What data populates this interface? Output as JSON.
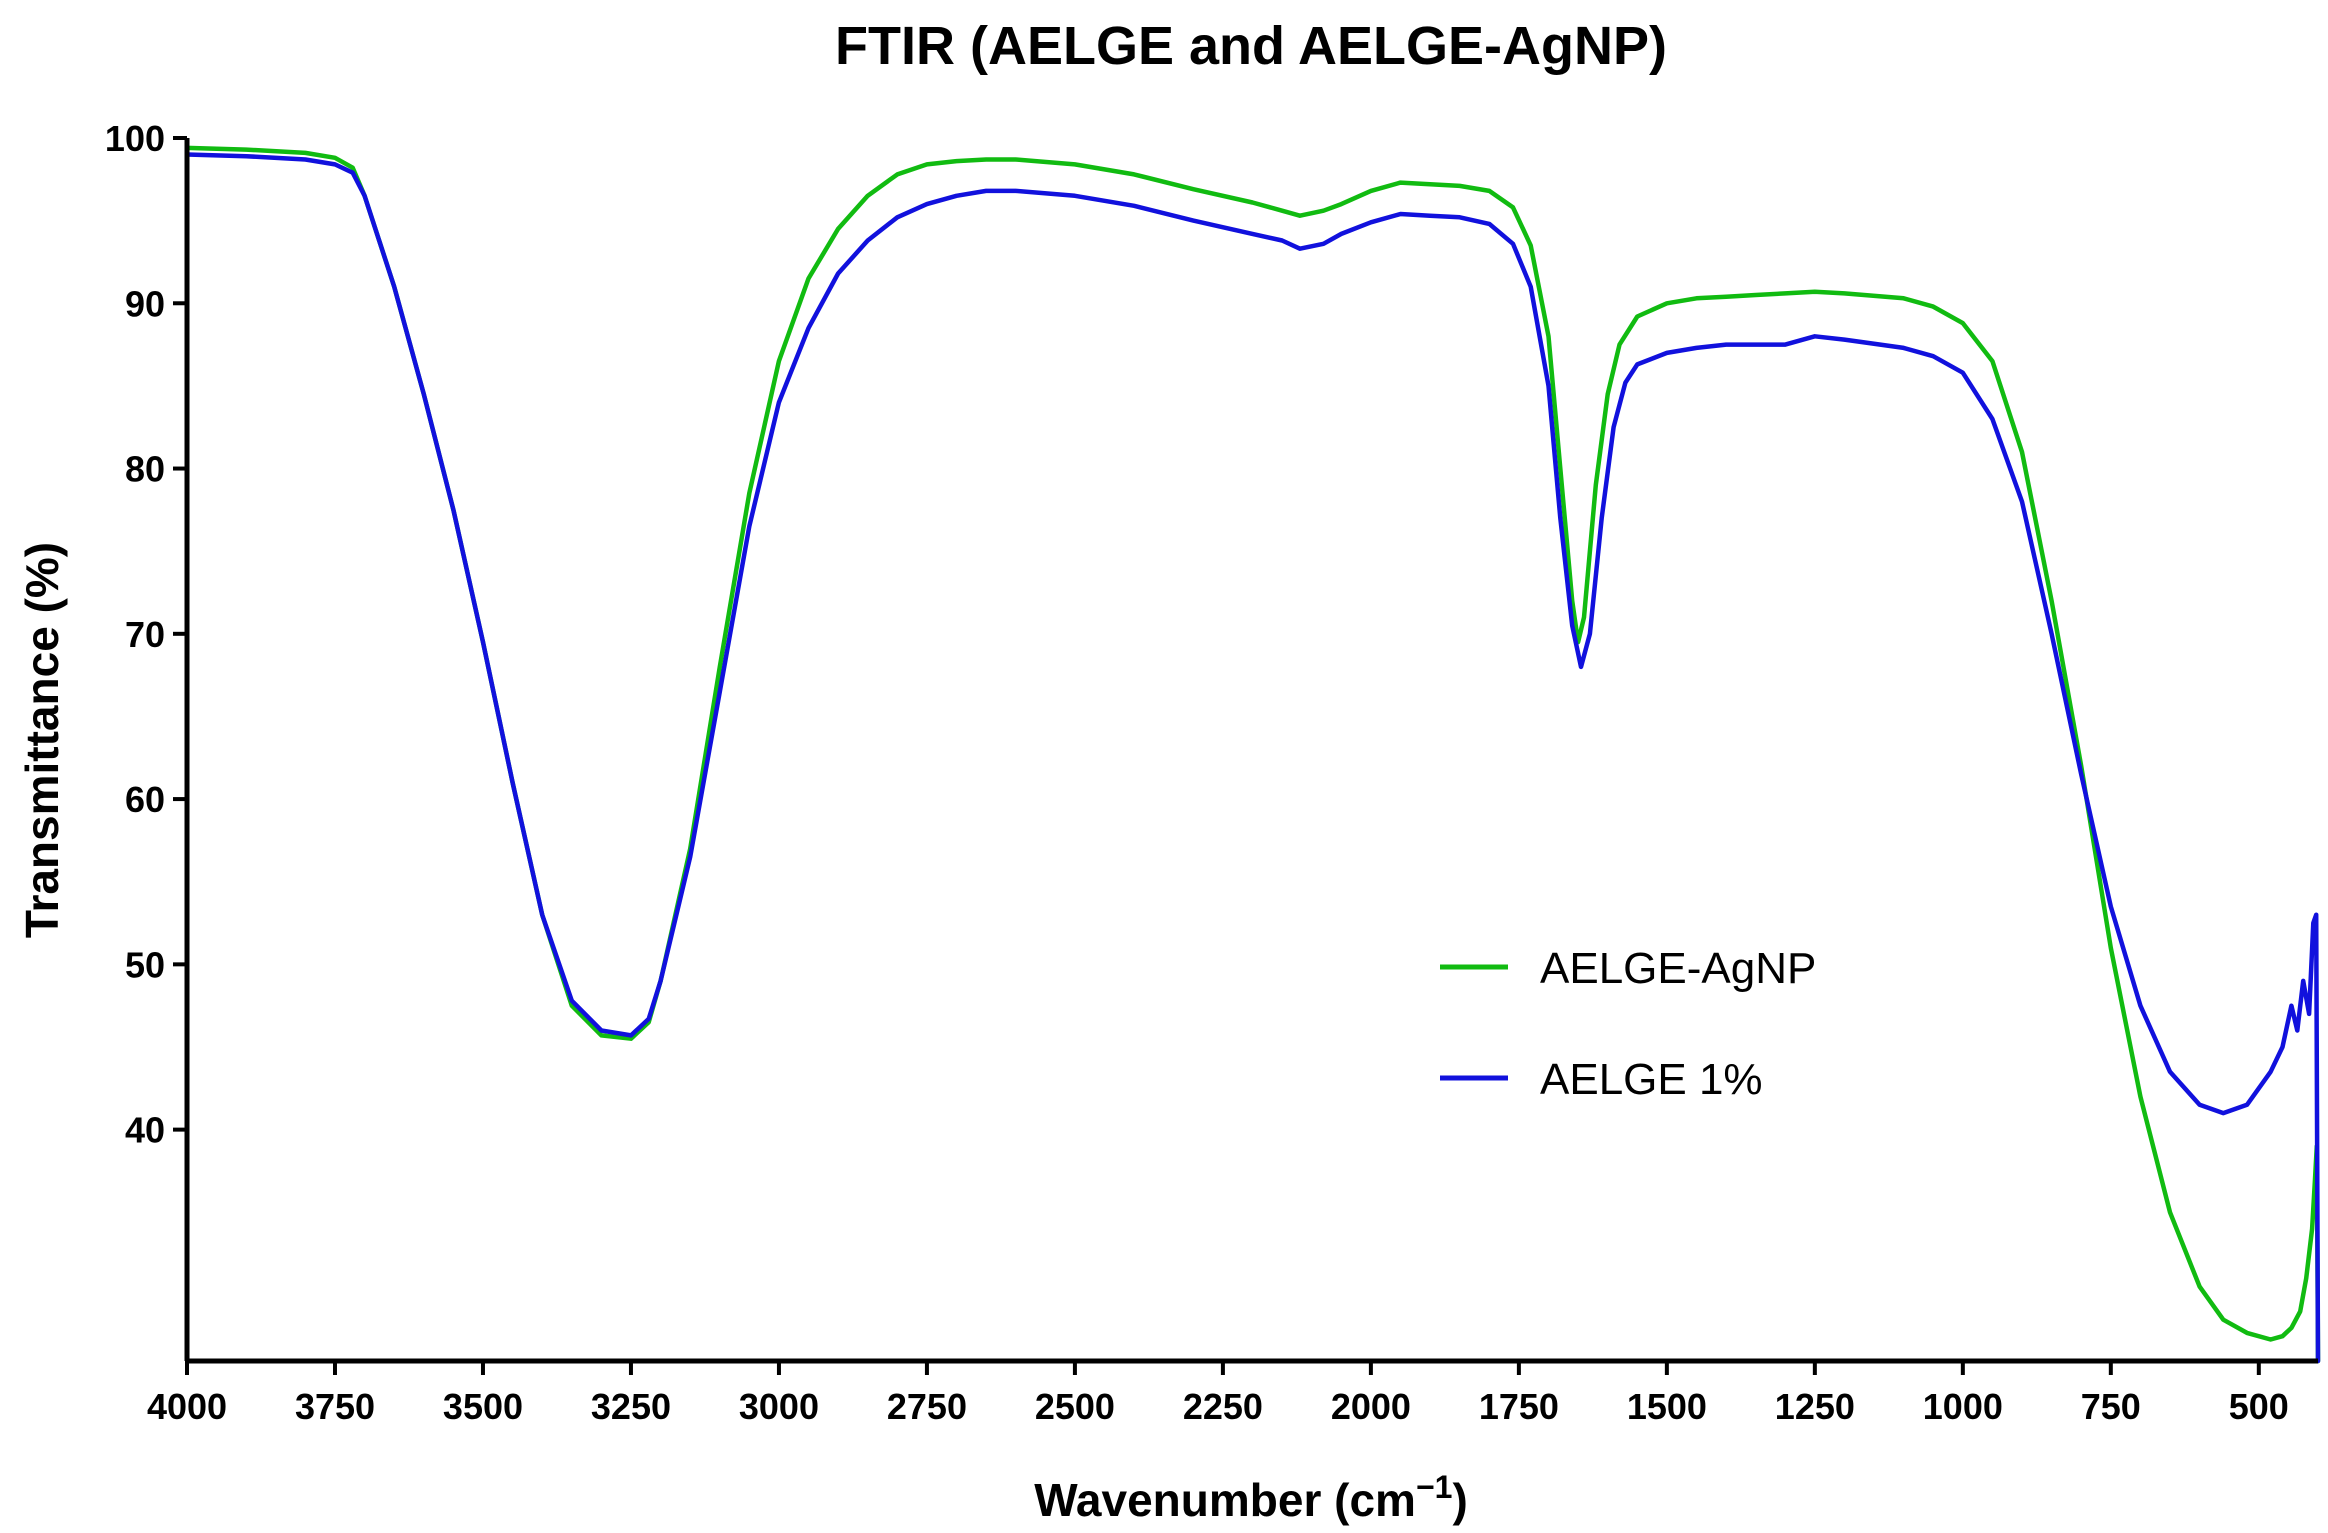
{
  "chart_data": {
    "type": "line",
    "title": "FTIR (AELGE and AELGE-AgNP)",
    "xlabel": "Wavenumber (cm",
    "xlabel_sup": "−1",
    "xlabel_close": ")",
    "ylabel": "Transmittance (%)",
    "xlim": [
      4000,
      400
    ],
    "ylim": [
      26,
      100
    ],
    "x_reversed": true,
    "x_ticks": [
      4000,
      3750,
      3500,
      3250,
      3000,
      2750,
      2500,
      2250,
      2000,
      1750,
      1500,
      1250,
      1000,
      750,
      500
    ],
    "y_ticks": [
      40,
      50,
      60,
      70,
      80,
      90,
      100
    ],
    "legend_position": "right-middle",
    "grid": false,
    "series": [
      {
        "name": "AELGE-AgNP",
        "color": "#11bb11",
        "points": [
          [
            4000,
            99.4
          ],
          [
            3900,
            99.3
          ],
          [
            3800,
            99.1
          ],
          [
            3750,
            98.8
          ],
          [
            3720,
            98.2
          ],
          [
            3700,
            96.5
          ],
          [
            3650,
            91.0
          ],
          [
            3600,
            84.5
          ],
          [
            3550,
            77.5
          ],
          [
            3500,
            69.5
          ],
          [
            3450,
            61.0
          ],
          [
            3400,
            53.0
          ],
          [
            3350,
            47.5
          ],
          [
            3300,
            45.7
          ],
          [
            3250,
            45.5
          ],
          [
            3220,
            46.5
          ],
          [
            3200,
            49.0
          ],
          [
            3150,
            57.0
          ],
          [
            3100,
            68.0
          ],
          [
            3050,
            78.5
          ],
          [
            3000,
            86.5
          ],
          [
            2950,
            91.5
          ],
          [
            2900,
            94.5
          ],
          [
            2850,
            96.5
          ],
          [
            2800,
            97.8
          ],
          [
            2750,
            98.4
          ],
          [
            2700,
            98.6
          ],
          [
            2650,
            98.7
          ],
          [
            2600,
            98.7
          ],
          [
            2500,
            98.4
          ],
          [
            2400,
            97.8
          ],
          [
            2300,
            96.9
          ],
          [
            2200,
            96.1
          ],
          [
            2150,
            95.6
          ],
          [
            2120,
            95.3
          ],
          [
            2080,
            95.6
          ],
          [
            2050,
            96.0
          ],
          [
            2000,
            96.8
          ],
          [
            1950,
            97.3
          ],
          [
            1900,
            97.2
          ],
          [
            1850,
            97.1
          ],
          [
            1800,
            96.8
          ],
          [
            1760,
            95.8
          ],
          [
            1730,
            93.5
          ],
          [
            1700,
            88.0
          ],
          [
            1680,
            80.0
          ],
          [
            1660,
            72.0
          ],
          [
            1650,
            69.5
          ],
          [
            1640,
            71.0
          ],
          [
            1620,
            79.0
          ],
          [
            1600,
            84.5
          ],
          [
            1580,
            87.5
          ],
          [
            1550,
            89.2
          ],
          [
            1500,
            90.0
          ],
          [
            1450,
            90.3
          ],
          [
            1400,
            90.4
          ],
          [
            1350,
            90.5
          ],
          [
            1300,
            90.6
          ],
          [
            1250,
            90.7
          ],
          [
            1200,
            90.6
          ],
          [
            1100,
            90.3
          ],
          [
            1050,
            89.8
          ],
          [
            1000,
            88.8
          ],
          [
            950,
            86.5
          ],
          [
            900,
            81.0
          ],
          [
            850,
            72.0
          ],
          [
            800,
            62.0
          ],
          [
            750,
            51.0
          ],
          [
            700,
            42.0
          ],
          [
            650,
            35.0
          ],
          [
            600,
            30.5
          ],
          [
            560,
            28.5
          ],
          [
            520,
            27.7
          ],
          [
            480,
            27.3
          ],
          [
            460,
            27.5
          ],
          [
            445,
            28.0
          ],
          [
            430,
            29.0
          ],
          [
            420,
            31.0
          ],
          [
            410,
            34.0
          ],
          [
            405,
            37.0
          ],
          [
            402,
            39.0
          ],
          [
            400,
            26.0
          ]
        ]
      },
      {
        "name": "AELGE 1%",
        "color": "#1111dd",
        "points": [
          [
            4000,
            99.0
          ],
          [
            3900,
            98.9
          ],
          [
            3800,
            98.7
          ],
          [
            3750,
            98.4
          ],
          [
            3720,
            97.9
          ],
          [
            3700,
            96.5
          ],
          [
            3650,
            91.0
          ],
          [
            3600,
            84.5
          ],
          [
            3550,
            77.5
          ],
          [
            3500,
            69.5
          ],
          [
            3450,
            61.0
          ],
          [
            3400,
            53.0
          ],
          [
            3350,
            47.8
          ],
          [
            3300,
            46.0
          ],
          [
            3250,
            45.7
          ],
          [
            3220,
            46.7
          ],
          [
            3200,
            49.0
          ],
          [
            3150,
            56.5
          ],
          [
            3100,
            66.5
          ],
          [
            3050,
            76.5
          ],
          [
            3000,
            84.0
          ],
          [
            2950,
            88.5
          ],
          [
            2900,
            91.8
          ],
          [
            2850,
            93.8
          ],
          [
            2800,
            95.2
          ],
          [
            2750,
            96.0
          ],
          [
            2700,
            96.5
          ],
          [
            2650,
            96.8
          ],
          [
            2600,
            96.8
          ],
          [
            2500,
            96.5
          ],
          [
            2400,
            95.9
          ],
          [
            2300,
            95.0
          ],
          [
            2200,
            94.2
          ],
          [
            2150,
            93.8
          ],
          [
            2120,
            93.3
          ],
          [
            2080,
            93.6
          ],
          [
            2050,
            94.2
          ],
          [
            2000,
            94.9
          ],
          [
            1950,
            95.4
          ],
          [
            1900,
            95.3
          ],
          [
            1850,
            95.2
          ],
          [
            1800,
            94.8
          ],
          [
            1760,
            93.6
          ],
          [
            1730,
            91.0
          ],
          [
            1700,
            85.0
          ],
          [
            1680,
            77.0
          ],
          [
            1660,
            70.5
          ],
          [
            1645,
            68.0
          ],
          [
            1630,
            70.0
          ],
          [
            1610,
            77.0
          ],
          [
            1590,
            82.5
          ],
          [
            1570,
            85.2
          ],
          [
            1550,
            86.3
          ],
          [
            1500,
            87.0
          ],
          [
            1450,
            87.3
          ],
          [
            1400,
            87.5
          ],
          [
            1350,
            87.5
          ],
          [
            1300,
            87.5
          ],
          [
            1250,
            88.0
          ],
          [
            1200,
            87.8
          ],
          [
            1100,
            87.3
          ],
          [
            1050,
            86.8
          ],
          [
            1000,
            85.8
          ],
          [
            950,
            83.0
          ],
          [
            900,
            78.0
          ],
          [
            850,
            70.0
          ],
          [
            800,
            61.5
          ],
          [
            750,
            53.5
          ],
          [
            700,
            47.5
          ],
          [
            650,
            43.5
          ],
          [
            600,
            41.5
          ],
          [
            560,
            41.0
          ],
          [
            520,
            41.5
          ],
          [
            480,
            43.5
          ],
          [
            460,
            45.0
          ],
          [
            445,
            47.5
          ],
          [
            435,
            46.0
          ],
          [
            425,
            49.0
          ],
          [
            415,
            47.0
          ],
          [
            408,
            52.5
          ],
          [
            403,
            53.0
          ],
          [
            400,
            26.0
          ]
        ]
      }
    ]
  }
}
